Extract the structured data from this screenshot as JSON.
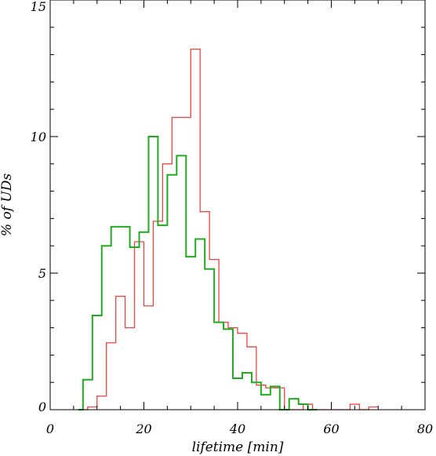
{
  "chart_data": {
    "type": "histogram",
    "xlabel": "lifetime [min]",
    "ylabel": "% of UDs",
    "xlim": [
      0,
      80
    ],
    "ylim": [
      0,
      15
    ],
    "x_ticks": [
      0,
      20,
      40,
      60,
      80
    ],
    "y_ticks": [
      0,
      5,
      10,
      15
    ],
    "grid": false,
    "series": [
      {
        "color": "#ee4444",
        "edges": [
          6,
          8,
          10,
          12,
          14,
          16,
          18,
          20,
          22,
          24,
          26,
          28,
          30,
          32,
          34,
          36,
          38,
          40,
          42,
          44,
          46,
          48,
          50,
          52,
          54,
          56,
          58,
          60,
          62,
          64,
          66,
          68,
          70
        ],
        "values": [
          0,
          0.1,
          0.5,
          2.45,
          4.15,
          3.0,
          6.15,
          3.8,
          6.9,
          9.0,
          10.7,
          10.7,
          13.2,
          7.25,
          5.5,
          3.2,
          3.0,
          2.8,
          2.3,
          0.9,
          0.8,
          0.8,
          0.0,
          0.0,
          0.2,
          0.0,
          0.0,
          0.0,
          0.0,
          0.2,
          0.0,
          0.1
        ]
      },
      {
        "color": "#22aa22",
        "edges": [
          6,
          7,
          9,
          11,
          13,
          15,
          17,
          19,
          21,
          23,
          25,
          27,
          29,
          31,
          33,
          35,
          37,
          39,
          41,
          43,
          45,
          47,
          49,
          51,
          53,
          55,
          57
        ],
        "values": [
          0,
          1.1,
          3.45,
          6.0,
          6.7,
          6.7,
          5.95,
          6.5,
          10.0,
          6.75,
          8.6,
          9.3,
          5.6,
          6.25,
          5.15,
          3.2,
          2.95,
          1.15,
          1.35,
          1.0,
          0.55,
          0.85,
          0.0,
          0.4,
          0.2,
          0.0
        ]
      }
    ]
  }
}
